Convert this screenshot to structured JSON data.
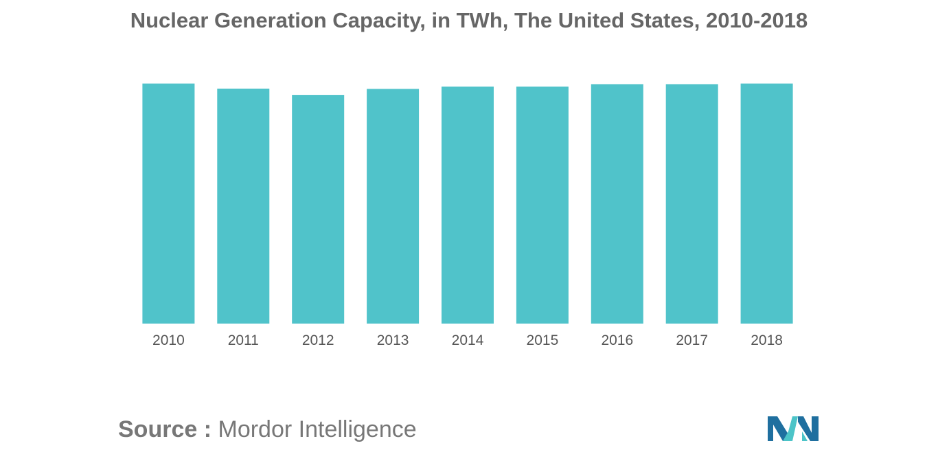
{
  "chart_data": {
    "type": "bar",
    "title": "Nuclear Generation Capacity, in TWh, The United States, 2010-2018",
    "xlabel": "",
    "ylabel": "",
    "categories": [
      "2010",
      "2011",
      "2012",
      "2013",
      "2014",
      "2015",
      "2016",
      "2017",
      "2018"
    ],
    "values": [
      807,
      790,
      769,
      789,
      797,
      797,
      805,
      805,
      807
    ],
    "ylim": [
      0,
      820
    ],
    "grid": false,
    "legend": "none",
    "bar_color": "#50c3ca"
  },
  "source": {
    "label": "Source :",
    "value": "Mordor Intelligence"
  },
  "colors": {
    "title": "#666666",
    "tick": "#555555",
    "source": "#777777",
    "logo_dark": "#1f6f9f",
    "logo_light": "#4cc4c8"
  }
}
